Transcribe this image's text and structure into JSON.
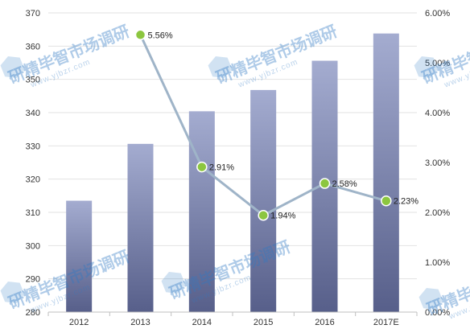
{
  "watermark": {
    "text": "研精毕智市场调研",
    "url": "www.yjbzr.com"
  },
  "colors": {
    "bar_top": "#a4acd0",
    "bar_bottom": "#575f8a",
    "line": "#9fb4c8",
    "marker": "#8cc63f",
    "marker_stroke": "#ffffff",
    "grid": "#e2e2e2",
    "axis": "#bfbfbf",
    "watermark": "#2f79c4"
  },
  "chart_data": {
    "type": "bar",
    "categories": [
      "2012",
      "2013",
      "2014",
      "2015",
      "2016",
      "2017E"
    ],
    "series": [
      {
        "type": "bar",
        "axis": "left",
        "values": [
          313.5,
          330.6,
          340.4,
          346.8,
          355.6,
          363.8
        ]
      },
      {
        "type": "line",
        "axis": "right",
        "values": [
          null,
          5.56,
          2.91,
          1.94,
          2.58,
          2.23
        ],
        "labels": [
          "",
          "5.56%",
          "2.91%",
          "1.94%",
          "2.58%",
          "2.23%"
        ]
      }
    ],
    "y_left": {
      "min": 280,
      "max": 370,
      "ticks": [
        "280",
        "290",
        "300",
        "310",
        "320",
        "330",
        "340",
        "350",
        "360",
        "370"
      ]
    },
    "y_right": {
      "min": 0,
      "max": 6,
      "ticks": [
        "0.00%",
        "1.00%",
        "2.00%",
        "3.00%",
        "4.00%",
        "5.00%",
        "6.00%"
      ]
    },
    "title": "",
    "xlabel": "",
    "ylabel": "",
    "grid": true,
    "legend": "none"
  }
}
